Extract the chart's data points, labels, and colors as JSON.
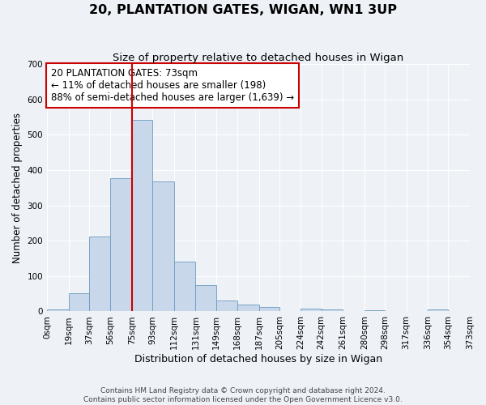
{
  "title": "20, PLANTATION GATES, WIGAN, WN1 3UP",
  "subtitle": "Size of property relative to detached houses in Wigan",
  "xlabel": "Distribution of detached houses by size in Wigan",
  "ylabel": "Number of detached properties",
  "bin_labels": [
    "0sqm",
    "19sqm",
    "37sqm",
    "56sqm",
    "75sqm",
    "93sqm",
    "112sqm",
    "131sqm",
    "149sqm",
    "168sqm",
    "187sqm",
    "205sqm",
    "224sqm",
    "242sqm",
    "261sqm",
    "280sqm",
    "298sqm",
    "317sqm",
    "336sqm",
    "354sqm",
    "373sqm"
  ],
  "bar_values": [
    5,
    52,
    212,
    378,
    543,
    368,
    140,
    75,
    32,
    19,
    13,
    0,
    8,
    5,
    0,
    4,
    0,
    0,
    5,
    0
  ],
  "bin_edges": [
    0,
    19,
    37,
    56,
    75,
    93,
    112,
    131,
    149,
    168,
    187,
    205,
    224,
    242,
    261,
    280,
    298,
    317,
    336,
    354,
    373
  ],
  "ylim": [
    0,
    700
  ],
  "yticks": [
    0,
    100,
    200,
    300,
    400,
    500,
    600,
    700
  ],
  "bar_color": "#c8d8ea",
  "bar_edge_color": "#6a9bbf",
  "bg_color": "#eef2f7",
  "grid_color": "#ffffff",
  "vline_x": 75,
  "vline_color": "#cc0000",
  "annotation_text": "20 PLANTATION GATES: 73sqm\n← 11% of detached houses are smaller (198)\n88% of semi-detached houses are larger (1,639) →",
  "annotation_box_facecolor": "#ffffff",
  "annotation_box_edgecolor": "#cc0000",
  "footer_line1": "Contains HM Land Registry data © Crown copyright and database right 2024.",
  "footer_line2": "Contains public sector information licensed under the Open Government Licence v3.0.",
  "title_fontsize": 11.5,
  "subtitle_fontsize": 9.5,
  "xlabel_fontsize": 9,
  "ylabel_fontsize": 8.5,
  "tick_fontsize": 7.5,
  "annotation_fontsize": 8.5,
  "footer_fontsize": 6.5
}
